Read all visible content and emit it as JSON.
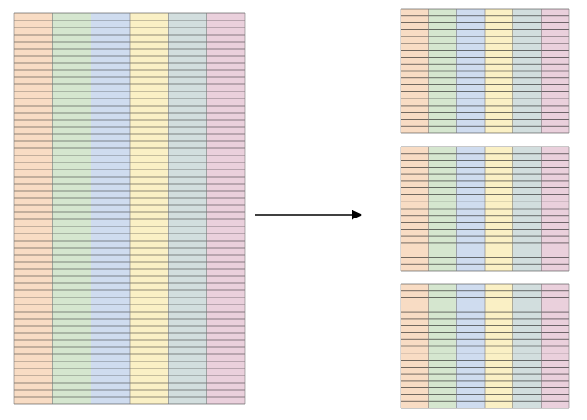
{
  "column_colors": [
    "#f8dcc4",
    "#d5e6cf",
    "#cfdcef",
    "#faf0c5",
    "#d2dede",
    "#ead0dc"
  ],
  "grid_line_color": "#222222",
  "source_table": {
    "columns": 6,
    "rows": 55
  },
  "split_tables": [
    {
      "columns": 6,
      "rows": 18
    },
    {
      "columns": 6,
      "rows": 18
    },
    {
      "columns": 6,
      "rows": 18
    }
  ],
  "arrow": {
    "direction": "right",
    "color": "#000000"
  }
}
